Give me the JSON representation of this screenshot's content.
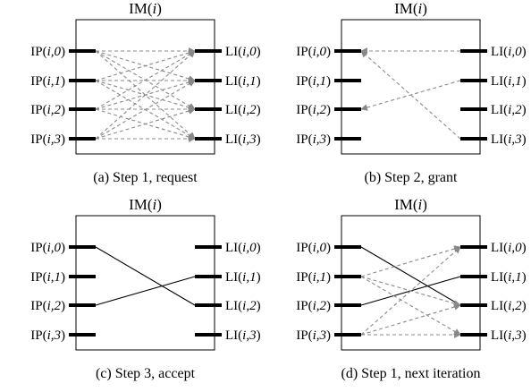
{
  "panels": [
    {
      "title": "IM(<i>i</i>)",
      "caption": "(a) Step 1, request",
      "inputs": [
        "IP(<i>i,0</i>)",
        "IP(<i>i,1</i>)",
        "IP(<i>i,2</i>)",
        "IP(<i>i,3</i>)"
      ],
      "outputs": [
        "LI(<i>i,0</i>)",
        "LI(<i>i,1</i>)",
        "LI(<i>i,2</i>)",
        "LI(<i>i,3</i>)"
      ],
      "connections": [
        {
          "from": "in",
          "src": 0,
          "dst": 0,
          "style": "dashed-arrow"
        },
        {
          "from": "in",
          "src": 0,
          "dst": 1,
          "style": "dashed-arrow"
        },
        {
          "from": "in",
          "src": 0,
          "dst": 2,
          "style": "dashed-arrow"
        },
        {
          "from": "in",
          "src": 0,
          "dst": 3,
          "style": "dashed-arrow"
        },
        {
          "from": "in",
          "src": 1,
          "dst": 0,
          "style": "dashed-arrow"
        },
        {
          "from": "in",
          "src": 1,
          "dst": 1,
          "style": "dashed-arrow"
        },
        {
          "from": "in",
          "src": 1,
          "dst": 2,
          "style": "dashed-arrow"
        },
        {
          "from": "in",
          "src": 1,
          "dst": 3,
          "style": "dashed-arrow"
        },
        {
          "from": "in",
          "src": 2,
          "dst": 0,
          "style": "dashed-arrow"
        },
        {
          "from": "in",
          "src": 2,
          "dst": 1,
          "style": "dashed-arrow"
        },
        {
          "from": "in",
          "src": 2,
          "dst": 2,
          "style": "dashed-arrow"
        },
        {
          "from": "in",
          "src": 2,
          "dst": 3,
          "style": "dashed-arrow"
        },
        {
          "from": "in",
          "src": 3,
          "dst": 0,
          "style": "dashed-arrow"
        },
        {
          "from": "in",
          "src": 3,
          "dst": 1,
          "style": "dashed-arrow"
        },
        {
          "from": "in",
          "src": 3,
          "dst": 2,
          "style": "dashed-arrow"
        },
        {
          "from": "in",
          "src": 3,
          "dst": 3,
          "style": "dashed-arrow"
        }
      ]
    },
    {
      "title": "IM(<i>i</i>)",
      "caption": "(b) Step 2, grant",
      "inputs": [
        "IP(<i>i,0</i>)",
        "IP(<i>i,1</i>)",
        "IP(<i>i,2</i>)",
        "IP(<i>i,3</i>)"
      ],
      "outputs": [
        "LI(<i>i,0</i>)",
        "LI(<i>i,1</i>)",
        "LI(<i>i,2</i>)",
        "LI(<i>i,3</i>)"
      ],
      "connections": [
        {
          "from": "out",
          "src": 0,
          "dst": 0,
          "style": "dashed-arrow"
        },
        {
          "from": "out",
          "src": 1,
          "dst": 2,
          "style": "dashed-arrow"
        },
        {
          "from": "out",
          "src": 3,
          "dst": 0,
          "style": "dashed-arrow"
        }
      ]
    },
    {
      "title": "IM(<i>i</i>)",
      "caption": "(c) Step 3, accept",
      "inputs": [
        "IP(<i>i,0</i>)",
        "IP(<i>i,1</i>)",
        "IP(<i>i,2</i>)",
        "IP(<i>i,3</i>)"
      ],
      "outputs": [
        "LI(<i>i,0</i>)",
        "LI(<i>i,1</i>)",
        "LI(<i>i,2</i>)",
        "LI(<i>i,3</i>)"
      ],
      "connections": [
        {
          "from": "in",
          "src": 0,
          "dst": 2,
          "style": "solid"
        },
        {
          "from": "in",
          "src": 2,
          "dst": 1,
          "style": "solid"
        }
      ]
    },
    {
      "title": "IM(<i>i</i>)",
      "caption": "(d) Step 1, next iteration",
      "inputs": [
        "IP(<i>i,0</i>)",
        "IP(<i>i,1</i>)",
        "IP(<i>i,2</i>)",
        "IP(<i>i,3</i>)"
      ],
      "outputs": [
        "LI(<i>i,0</i>)",
        "LI(<i>i,1</i>)",
        "LI(<i>i,2</i>)",
        "LI(<i>i,3</i>)"
      ],
      "connections": [
        {
          "from": "in",
          "src": 0,
          "dst": 2,
          "style": "solid"
        },
        {
          "from": "in",
          "src": 2,
          "dst": 1,
          "style": "solid"
        },
        {
          "from": "in",
          "src": 1,
          "dst": 0,
          "style": "dashed-arrow"
        },
        {
          "from": "in",
          "src": 1,
          "dst": 2,
          "style": "dashed-arrow"
        },
        {
          "from": "in",
          "src": 1,
          "dst": 3,
          "style": "dashed-arrow"
        },
        {
          "from": "in",
          "src": 3,
          "dst": 0,
          "style": "dashed-arrow"
        },
        {
          "from": "in",
          "src": 3,
          "dst": 2,
          "style": "dashed-arrow"
        },
        {
          "from": "in",
          "src": 3,
          "dst": 3,
          "style": "dashed-arrow"
        }
      ]
    }
  ]
}
